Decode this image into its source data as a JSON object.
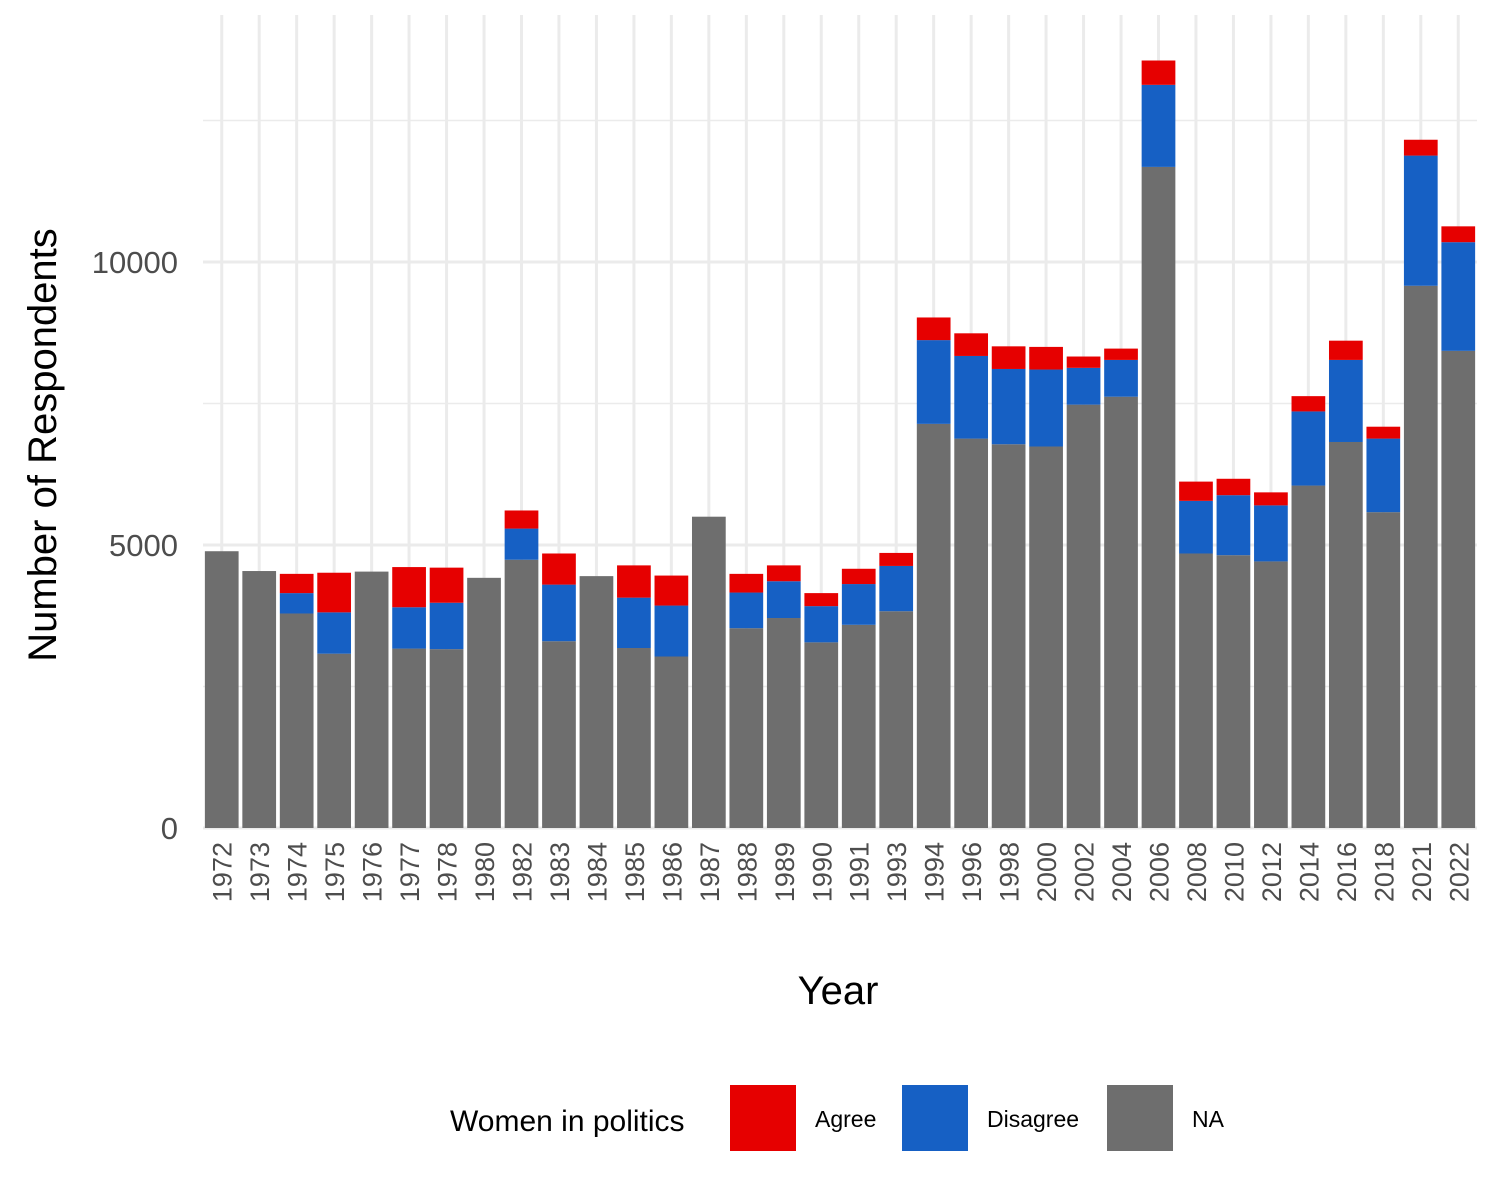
{
  "chart_data": {
    "type": "bar",
    "stacked": true,
    "xlabel": "Year",
    "ylabel": "Number of Respondents",
    "ylim": [
      0,
      14200
    ],
    "y_ticks": [
      0,
      5000,
      10000
    ],
    "y_tick_labels": [
      "0",
      "5000",
      "10000"
    ],
    "grid": true,
    "legend_position": "bottom",
    "legend_title": "Women in politics",
    "categories": [
      "1972",
      "1973",
      "1974",
      "1975",
      "1976",
      "1977",
      "1978",
      "1980",
      "1982",
      "1983",
      "1984",
      "1985",
      "1986",
      "1987",
      "1988",
      "1989",
      "1990",
      "1991",
      "1993",
      "1994",
      "1996",
      "1998",
      "2000",
      "2002",
      "2004",
      "2006",
      "2008",
      "2010",
      "2012",
      "2014",
      "2016",
      "2018",
      "2021",
      "2022"
    ],
    "series": [
      {
        "name": "NA",
        "color": "#6e6e6e",
        "values": [
          4890,
          4540,
          3790,
          3080,
          4530,
          3170,
          3160,
          4420,
          4740,
          3300,
          4450,
          3180,
          3030,
          5500,
          3530,
          3710,
          3280,
          3590,
          3830,
          7140,
          6880,
          6780,
          6740,
          7480,
          7620,
          11680,
          4850,
          4820,
          4710,
          6050,
          6820,
          5580,
          9580,
          8430
        ]
      },
      {
        "name": "Disagree",
        "color": "#1660c4",
        "values": [
          0,
          0,
          360,
          730,
          0,
          730,
          820,
          0,
          550,
          1000,
          0,
          890,
          900,
          0,
          630,
          650,
          640,
          720,
          800,
          1480,
          1460,
          1330,
          1360,
          650,
          650,
          1450,
          930,
          1060,
          990,
          1310,
          1450,
          1300,
          2300,
          1920
        ]
      },
      {
        "name": "Agree",
        "color": "#e60000",
        "values": [
          0,
          0,
          340,
          700,
          0,
          710,
          620,
          0,
          320,
          550,
          0,
          570,
          530,
          0,
          330,
          280,
          230,
          270,
          230,
          400,
          400,
          400,
          400,
          200,
          200,
          430,
          340,
          290,
          230,
          270,
          340,
          210,
          280,
          280
        ]
      }
    ],
    "legend_items": [
      {
        "label": "Agree",
        "color": "#e60000"
      },
      {
        "label": "Disagree",
        "color": "#1660c4"
      },
      {
        "label": "NA",
        "color": "#6e6e6e"
      }
    ]
  }
}
